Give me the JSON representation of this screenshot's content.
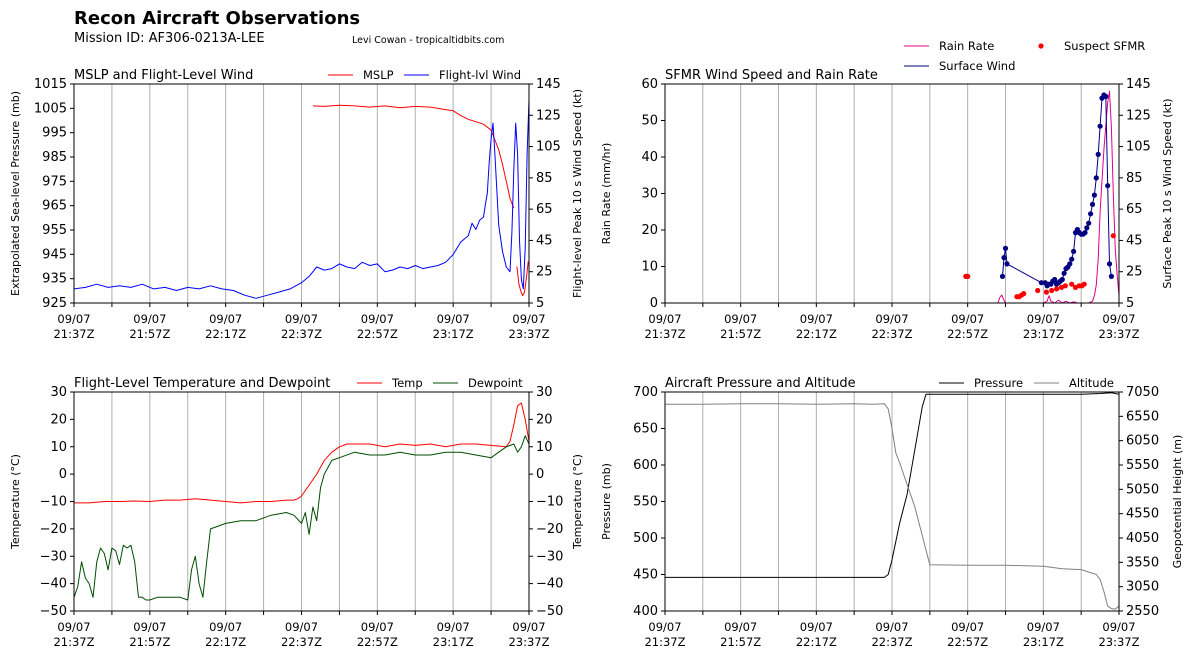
{
  "header": {
    "title": "Recon Aircraft Observations",
    "mission": "Mission ID: AF306-0213A-LEE",
    "credit": "Levi Cowan - tropicaltidbits.com"
  },
  "time_ticks": [
    "09/07\n21:37Z",
    "09/07\n21:57Z",
    "09/07\n22:17Z",
    "09/07\n22:37Z",
    "09/07\n22:57Z",
    "09/07\n23:17Z",
    "09/07\n23:37Z"
  ],
  "colors": {
    "mslp": "#ff0000",
    "wind": "#0000ff",
    "rain": "#e0008a",
    "surface": "#000080",
    "suspect": "#ff0000",
    "temp": "#ff0000",
    "dew": "#004d00",
    "pressure": "#000000",
    "altitude": "#808080",
    "grid": "#b0b0b0"
  },
  "chart_data": [
    {
      "type": "line",
      "title": "MSLP and Flight-Level Wind",
      "xlabel": "",
      "ylabel": "Extrapolated Sea-level Pressure (mb)",
      "ylabel_right": "Flight-level Peak 10 s Wind Speed (kt)",
      "ylim": [
        925,
        1015
      ],
      "ylim_right": [
        5,
        145
      ],
      "yticks": [
        925,
        935,
        945,
        955,
        965,
        975,
        985,
        995,
        1005,
        1015
      ],
      "yticks_right": [
        5,
        25,
        45,
        65,
        85,
        105,
        125,
        145
      ],
      "legend": "top-right",
      "xlim": [
        0,
        120
      ],
      "series": [
        {
          "name": "MSLP",
          "axis": "left",
          "color": "#ff0000",
          "x": [
            63,
            66,
            70,
            74,
            78,
            82,
            86,
            90,
            94,
            98,
            100,
            102,
            104,
            106,
            108,
            110,
            111,
            112,
            113,
            114,
            115,
            116
          ],
          "y": [
            1006,
            1005.8,
            1006.3,
            1006,
            1005.5,
            1006,
            1005.2,
            1005.8,
            1005.5,
            1004.5,
            1004,
            1002,
            1000.5,
            999.5,
            998.5,
            996,
            992,
            988,
            982,
            975,
            968,
            964
          ]
        },
        {
          "name": "",
          "axis": "left",
          "color": "#ff0000",
          "x": [
            116.8,
            117.3,
            117.8,
            118.3,
            118.8,
            119.3,
            119.8
          ],
          "y": [
            940,
            933,
            930,
            928,
            929.5,
            935,
            942
          ]
        },
        {
          "name": "Flight-lvl Wind",
          "axis": "right",
          "color": "#0000ff",
          "x": [
            0,
            3,
            6,
            9,
            12,
            15,
            18,
            21,
            24,
            27,
            30,
            33,
            36,
            39,
            42,
            45,
            48,
            51,
            54,
            57,
            60,
            62,
            64,
            66,
            68,
            70,
            72,
            74,
            76,
            78,
            80,
            82,
            84,
            86,
            88,
            90,
            92,
            94,
            96,
            98,
            100,
            101,
            102,
            103,
            104,
            105,
            106,
            107,
            108,
            108.5,
            109,
            109.5,
            110,
            110.5,
            111,
            112,
            113,
            114,
            115,
            115.5,
            116,
            116.5,
            117,
            117.5,
            118,
            118.5,
            119,
            119.5,
            120
          ],
          "y": [
            14,
            15,
            17,
            15,
            16,
            15,
            17,
            14,
            15,
            13,
            15,
            14,
            16,
            14,
            13,
            10,
            8,
            10,
            12,
            14,
            18,
            22,
            28,
            26,
            27,
            30,
            28,
            27,
            31,
            29,
            30,
            25,
            26,
            28,
            27,
            29,
            27,
            28,
            29,
            31,
            36,
            40,
            44,
            46,
            48,
            56,
            52,
            58,
            60,
            68,
            75,
            95,
            110,
            120,
            100,
            55,
            38,
            28,
            25,
            50,
            90,
            120,
            100,
            45,
            20,
            14,
            40,
            100,
            135
          ]
        }
      ]
    },
    {
      "type": "scatter",
      "title": "SFMR Wind Speed and Rain Rate",
      "xlabel": "",
      "ylabel": "Rain Rate (mm/hr)",
      "ylabel_right": "Surface Peak 10 s Wind Speed (kt)",
      "ylim": [
        0,
        60
      ],
      "ylim_right": [
        5,
        145
      ],
      "yticks": [
        0,
        10,
        20,
        30,
        40,
        50,
        60
      ],
      "yticks_right": [
        5,
        25,
        45,
        65,
        85,
        105,
        125,
        145
      ],
      "legend": "top-right",
      "xlim": [
        0,
        120
      ],
      "series": [
        {
          "name": "Rain Rate",
          "axis": "left",
          "color": "#e0008a",
          "kind": "line",
          "x": [
            88,
            88.5,
            89,
            89.5,
            90,
            92,
            95,
            98,
            100,
            101,
            101.5,
            102,
            103,
            104,
            105,
            106,
            107,
            108,
            109,
            110,
            111,
            112,
            113,
            113.5,
            114,
            114.5,
            115,
            116,
            117,
            117.5,
            118,
            118.5,
            119,
            119.5,
            120
          ],
          "y": [
            0,
            1.5,
            2.2,
            1,
            0,
            0,
            0,
            0,
            0,
            0.5,
            2,
            0.5,
            0,
            0.8,
            0,
            0.5,
            0,
            0.3,
            0,
            0,
            0,
            0,
            0.5,
            2,
            5,
            12,
            25,
            42,
            55,
            58,
            48,
            30,
            15,
            8,
            2
          ]
        },
        {
          "name": "Surface Wind",
          "axis": "right",
          "color": "#000080",
          "kind": "line-markers",
          "x": [
            89.2,
            89.6,
            90,
            90.4,
            99.5,
            100.5,
            101,
            101.5,
            102,
            102.5,
            103,
            103.5,
            104,
            104.5,
            105,
            105.5,
            106,
            106.5,
            107,
            107.5,
            108,
            108.5,
            109,
            109.5,
            110,
            110.5,
            111,
            111.5,
            112,
            112.5,
            113,
            113.5,
            114,
            114.5,
            115,
            115.5,
            116,
            116.5,
            117,
            117.5,
            118
          ],
          "y": [
            22,
            34,
            40,
            30,
            18,
            18,
            16,
            17,
            17,
            19,
            20,
            17,
            18,
            19,
            20,
            24,
            27,
            28,
            30,
            33,
            38,
            50,
            52,
            50,
            49,
            49,
            50,
            53,
            56,
            62,
            68,
            74,
            85,
            100,
            118,
            136,
            138,
            137,
            80,
            30,
            22
          ]
        },
        {
          "name": "Suspect SFMR",
          "axis": "right",
          "color": "#ff0000",
          "kind": "markers",
          "x": [
            79.5,
            80,
            93,
            93.6,
            94.2,
            94.8,
            98.5,
            100.8,
            102.2,
            103.5,
            104.8,
            105.8,
            107.5,
            108.5,
            109.5,
            110.2,
            110.8,
            118.5
          ],
          "y": [
            22,
            22,
            9,
            9,
            10,
            11,
            13,
            12,
            13,
            14,
            15,
            16,
            17,
            15,
            16,
            16,
            17,
            48
          ]
        }
      ]
    },
    {
      "type": "line",
      "title": "Flight-Level Temperature and Dewpoint",
      "xlabel": "",
      "ylabel": "Temperature (°C)",
      "ylabel_right": "Temperature (°C)",
      "ylim": [
        -50,
        30
      ],
      "ylim_right": [
        -50,
        30
      ],
      "yticks": [
        -50,
        -40,
        -30,
        -20,
        -10,
        0,
        10,
        20,
        30
      ],
      "yticks_right": [
        -50,
        -40,
        -30,
        -20,
        -10,
        0,
        10,
        20,
        30
      ],
      "legend": "top-right",
      "xlim": [
        0,
        120
      ],
      "series": [
        {
          "name": "Temp",
          "axis": "left",
          "color": "#ff0000",
          "x": [
            0,
            4,
            8,
            12,
            16,
            20,
            24,
            28,
            32,
            36,
            40,
            44,
            48,
            52,
            56,
            58,
            59,
            60,
            62,
            64,
            66,
            68,
            70,
            72,
            74,
            78,
            82,
            86,
            90,
            94,
            98,
            102,
            106,
            110,
            114,
            115,
            116,
            117,
            118,
            119,
            120
          ],
          "y": [
            -10.5,
            -10.5,
            -10,
            -10,
            -9.8,
            -10,
            -9.5,
            -9.5,
            -9,
            -9.5,
            -10,
            -10.5,
            -10,
            -10,
            -9.5,
            -9.5,
            -9,
            -8,
            -4,
            0,
            5,
            8,
            10,
            11,
            11,
            11,
            10,
            11,
            10.5,
            11,
            10,
            11,
            11,
            10.5,
            10,
            12,
            18,
            25,
            26,
            20,
            12
          ]
        },
        {
          "name": "Dewpoint",
          "axis": "left",
          "color": "#004d00",
          "x": [
            0,
            1,
            2,
            3,
            4,
            5,
            6,
            7,
            8,
            9,
            10,
            11,
            12,
            13,
            14,
            15,
            16,
            17,
            18,
            19,
            20,
            22,
            24,
            26,
            28,
            30,
            31,
            32,
            33,
            34,
            35,
            36,
            38,
            40,
            44,
            48,
            52,
            56,
            58,
            60,
            61,
            62,
            63,
            64,
            65,
            66,
            68,
            70,
            74,
            78,
            82,
            86,
            90,
            94,
            98,
            102,
            106,
            110,
            112,
            114,
            116,
            117,
            118,
            119,
            120
          ],
          "y": [
            -45,
            -41,
            -32,
            -38,
            -40,
            -45,
            -32,
            -27,
            -29,
            -35,
            -27,
            -28,
            -33,
            -26,
            -27,
            -26,
            -32,
            -45,
            -45,
            -46,
            -46,
            -45,
            -45,
            -45,
            -45,
            -46,
            -35,
            -30,
            -40,
            -45,
            -32,
            -20,
            -19,
            -18,
            -17,
            -17,
            -15,
            -14,
            -15,
            -18,
            -14,
            -22,
            -12,
            -17,
            -5,
            0,
            5,
            6,
            8,
            7,
            7,
            8,
            7,
            7,
            8,
            8,
            7,
            6,
            8,
            10,
            11,
            8,
            10,
            14,
            11
          ]
        }
      ]
    },
    {
      "type": "line",
      "title": "Aircraft Pressure and Altitude",
      "xlabel": "",
      "ylabel": "Pressure (mb)",
      "ylabel_right": "Geopotential Height (m)",
      "ylim": [
        400,
        700
      ],
      "ylim_right": [
        2550,
        7050
      ],
      "yticks": [
        400,
        450,
        500,
        550,
        600,
        650,
        700
      ],
      "yticks_right": [
        2550,
        3050,
        3550,
        4050,
        4550,
        5050,
        5550,
        6050,
        6550,
        7050
      ],
      "legend": "top-right",
      "xlim": [
        0,
        120
      ],
      "series": [
        {
          "name": "Pressure",
          "axis": "left",
          "color": "#000000",
          "x": [
            0,
            10,
            20,
            30,
            40,
            50,
            55,
            58,
            59,
            60,
            62,
            64,
            66,
            68,
            69,
            70,
            80,
            90,
            100,
            110,
            115,
            118,
            120
          ],
          "y": [
            446,
            446,
            446,
            446,
            446,
            446,
            446,
            446,
            450,
            470,
            520,
            560,
            620,
            680,
            697,
            697,
            697,
            697,
            697,
            697,
            698,
            699,
            697
          ]
        },
        {
          "name": "Altitude",
          "axis": "right",
          "color": "#808080",
          "x": [
            0,
            10,
            20,
            30,
            40,
            50,
            55,
            58,
            59,
            60,
            61,
            62,
            64,
            66,
            68,
            70,
            80,
            90,
            100,
            105,
            110,
            114,
            115,
            116,
            117,
            118,
            119,
            120
          ],
          "y": [
            6800,
            6800,
            6810,
            6810,
            6800,
            6810,
            6800,
            6810,
            6700,
            6300,
            5800,
            5600,
            5150,
            4700,
            4100,
            3500,
            3490,
            3490,
            3470,
            3420,
            3400,
            3300,
            3200,
            2950,
            2650,
            2600,
            2590,
            2650
          ]
        }
      ]
    }
  ]
}
